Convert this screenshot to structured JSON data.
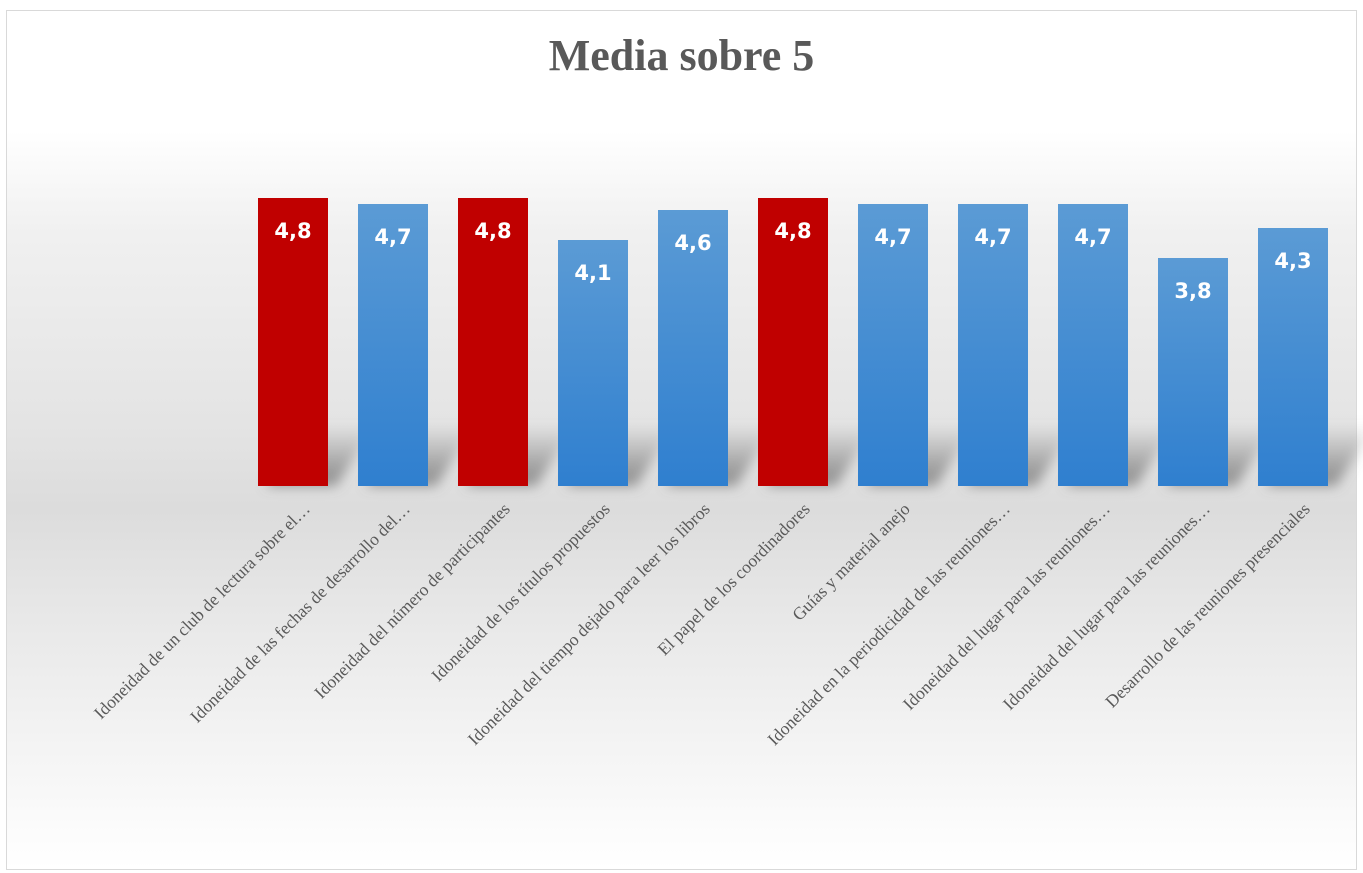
{
  "chart_data": {
    "type": "bar",
    "title": "Media sobre 5",
    "xlabel": "",
    "ylabel": "",
    "ylim": [
      0,
      5
    ],
    "grid": false,
    "legend": "none",
    "categories": [
      "Idoneidad de un club de lectura sobre el…",
      "Idoneidad de las fechas de desarrollo del…",
      "Idoneidad del número de participantes",
      "Idoneidad de los títulos propuestos",
      "Idoneidad del tiempo dejado para leer los libros",
      "El papel de los coordinadores",
      "Guías y material anejo",
      "Idoneidad en la periodicidad de las reuniones…",
      "Idoneidad del lugar para las reuniones…",
      "Idoneidad del lugar para las reuniones…",
      "Desarrollo de las reuniones presenciales"
    ],
    "values": [
      4.8,
      4.7,
      4.8,
      4.1,
      4.6,
      4.8,
      4.7,
      4.7,
      4.7,
      3.8,
      4.3
    ],
    "value_labels": [
      "4,8",
      "4,7",
      "4,8",
      "4,1",
      "4,6",
      "4,8",
      "4,7",
      "4,7",
      "4,7",
      "3,8",
      "4,3"
    ],
    "highlighted": [
      true,
      false,
      true,
      false,
      false,
      true,
      false,
      false,
      false,
      false,
      false
    ],
    "colors": {
      "highlight": "#c00000",
      "bar_top": "#5b9bd5",
      "bar_bottom": "#2f7fcf",
      "text": "#595959"
    }
  }
}
